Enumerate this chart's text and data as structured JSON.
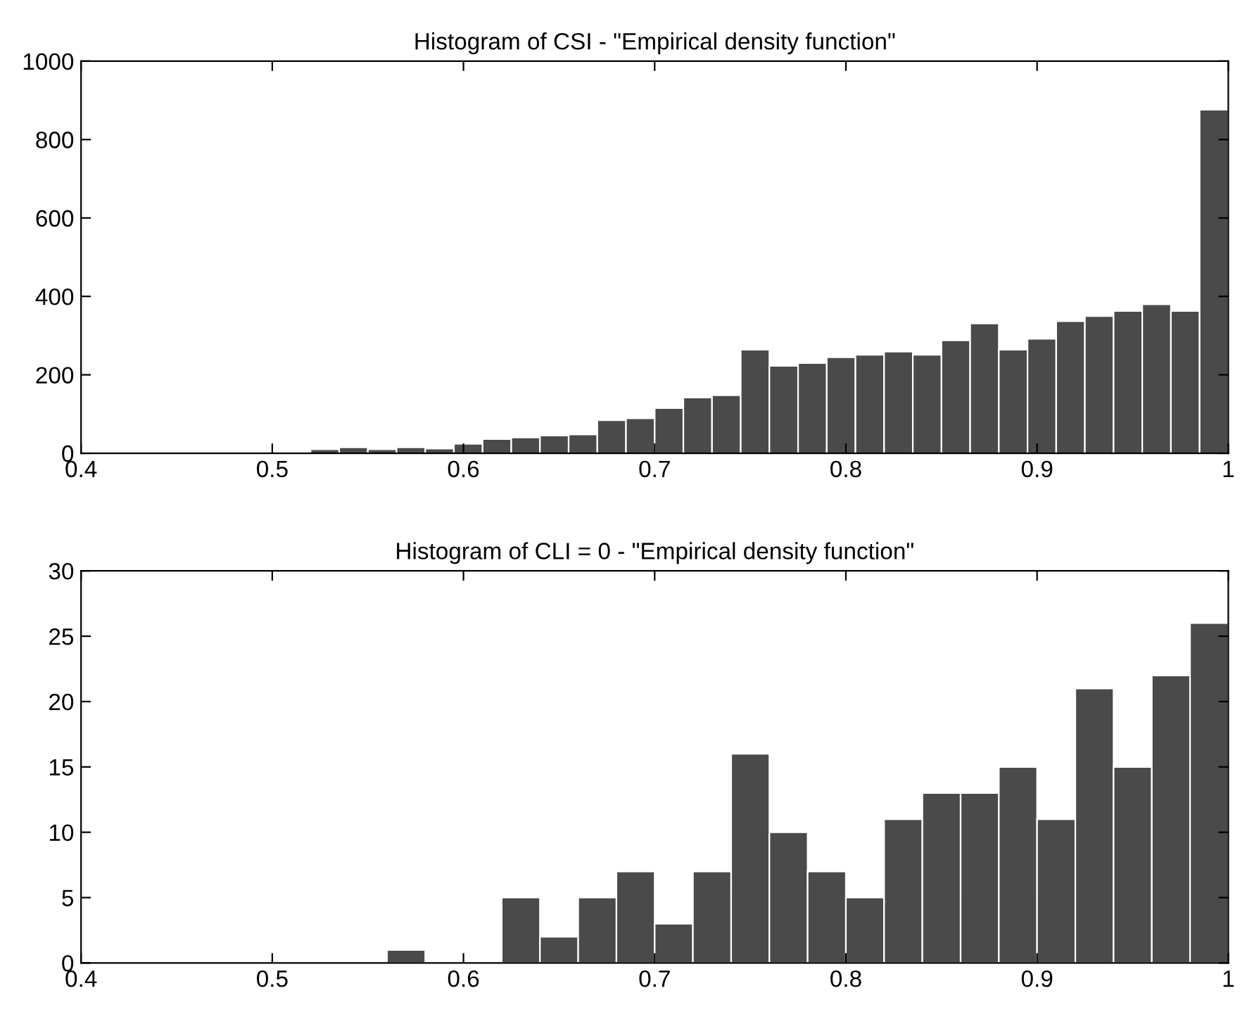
{
  "chart_data": [
    {
      "type": "histogram",
      "title": "Histogram of CSI - \"Empirical density function\"",
      "bins": [
        0.4,
        0.415,
        0.43,
        0.445,
        0.46,
        0.475,
        0.49,
        0.505,
        0.52,
        0.535,
        0.55,
        0.565,
        0.58,
        0.595,
        0.61,
        0.625,
        0.64,
        0.655,
        0.67,
        0.685,
        0.7,
        0.715,
        0.73,
        0.745,
        0.76,
        0.775,
        0.79,
        0.805,
        0.82,
        0.835,
        0.85,
        0.865,
        0.88,
        0.895,
        0.91,
        0.925,
        0.94,
        0.955,
        0.97,
        0.985,
        1.0
      ],
      "values": [
        0,
        0,
        0,
        3,
        3,
        0,
        0,
        3,
        10,
        15,
        10,
        15,
        12,
        24,
        36,
        40,
        45,
        48,
        84,
        89,
        115,
        142,
        148,
        264,
        223,
        230,
        245,
        251,
        259,
        251,
        288,
        331,
        264,
        292,
        337,
        350,
        363,
        380,
        363,
        876
      ],
      "color": "#4a4a4a",
      "xlim": [
        0.4,
        1
      ],
      "xticks": [
        0.4,
        0.5,
        0.6,
        0.7,
        0.8,
        0.9,
        1
      ],
      "ylim": [
        0,
        1000
      ],
      "yticks": [
        0,
        200,
        400,
        600,
        800,
        1000
      ]
    },
    {
      "type": "histogram",
      "title": "Histogram of CLI = 0 - \"Empirical density function\"",
      "bins": [
        0.4,
        0.42,
        0.44,
        0.46,
        0.48,
        0.5,
        0.52,
        0.54,
        0.56,
        0.58,
        0.6,
        0.62,
        0.64,
        0.66,
        0.68,
        0.7,
        0.72,
        0.74,
        0.76,
        0.78,
        0.8,
        0.82,
        0.84,
        0.86,
        0.88,
        0.9,
        0.92,
        0.94,
        0.96,
        0.98,
        1.0
      ],
      "values": [
        0,
        0,
        0,
        0,
        0,
        0,
        0,
        0,
        1,
        0,
        0,
        5,
        2,
        5,
        7,
        3,
        7,
        16,
        10,
        7,
        5,
        11,
        13,
        13,
        15,
        11,
        21,
        15,
        22,
        26
      ],
      "color": "#4a4a4a",
      "xlim": [
        0.4,
        1
      ],
      "xticks": [
        0.4,
        0.5,
        0.6,
        0.7,
        0.8,
        0.9,
        1
      ],
      "ylim": [
        0,
        30
      ],
      "yticks": [
        0,
        5,
        10,
        15,
        20,
        25,
        30
      ]
    }
  ]
}
